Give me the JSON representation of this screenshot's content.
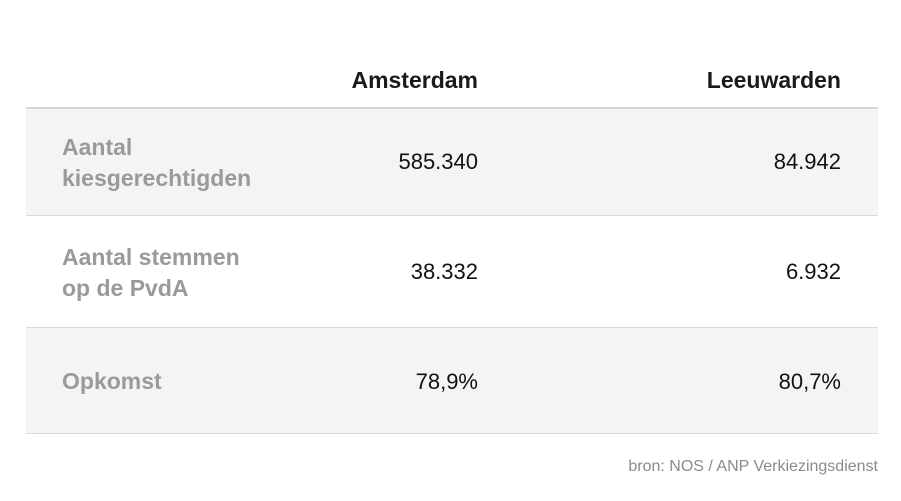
{
  "chart_data": {
    "type": "table",
    "columns": [
      "",
      "Amsterdam",
      "Leeuwarden"
    ],
    "rows": [
      {
        "label": "Aantal kiesgerechtigden",
        "label_lines": [
          "Aantal",
          "kiesgerechtigden"
        ],
        "values": [
          "585.340",
          "84.942"
        ]
      },
      {
        "label": "Aantal stemmen op de PvdA",
        "label_lines": [
          "Aantal stemmen",
          "op de PvdA"
        ],
        "values": [
          "38.332",
          "6.932"
        ]
      },
      {
        "label": "Opkomst",
        "label_lines": [
          "Opkomst"
        ],
        "values": [
          "78,9%",
          "80,7%"
        ]
      }
    ],
    "source": "bron: NOS / ANP Verkiezingsdienst"
  },
  "colors": {
    "header_text": "#1a1a1a",
    "label_text": "#9a9a9a",
    "value_text": "#111111",
    "shaded_row": "#f4f4f4",
    "rule": "#d6d6d6"
  }
}
